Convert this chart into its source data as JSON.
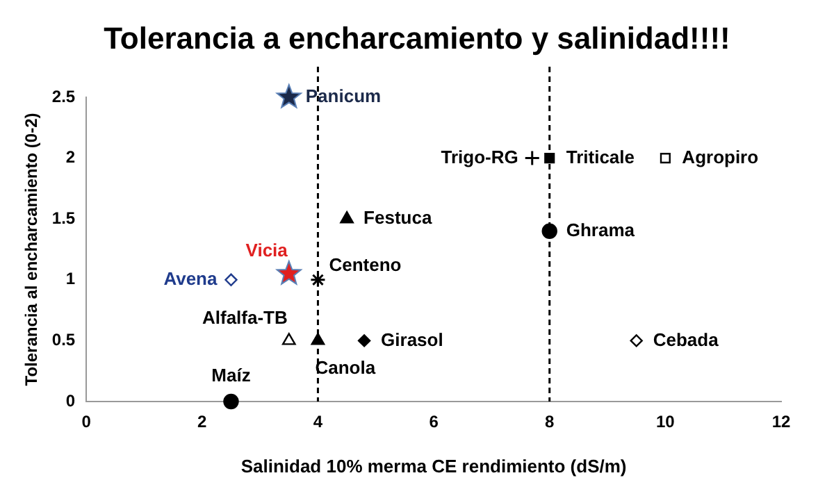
{
  "chart_data": {
    "type": "scatter",
    "title": "Tolerancia a encharcamiento y salinidad!!!!",
    "xlabel": "Salinidad 10% merma CE rendimiento (dS/m)",
    "ylabel": "Tolerancia al encharcamiento (0-2)",
    "xlim": [
      0,
      12
    ],
    "xticks": [
      0,
      2,
      4,
      6,
      8,
      10,
      12
    ],
    "ylim": [
      0,
      2.5
    ],
    "yticks": [
      0,
      0.5,
      1,
      1.5,
      2,
      2.5
    ],
    "grid": false,
    "legend": false,
    "ref_lines": [
      {
        "axis": "x",
        "value": 4,
        "line_style": "dashed",
        "color": "#000000"
      },
      {
        "axis": "x",
        "value": 8,
        "line_style": "dashed",
        "color": "#000000"
      }
    ],
    "series": [
      {
        "name": "Panicum",
        "color": "#1c2a4a",
        "marker": "star",
        "x": [
          3.5
        ],
        "values": [
          2.5
        ]
      },
      {
        "name": "Trigo-RG",
        "color": "#000000",
        "marker": "cross",
        "x": [
          7.7
        ],
        "values": [
          2
        ]
      },
      {
        "name": "Triticale",
        "color": "#000000",
        "marker": "square",
        "x": [
          8
        ],
        "values": [
          2
        ]
      },
      {
        "name": "Agropiro",
        "color": "#000000",
        "marker": "square",
        "x": [
          10
        ],
        "values": [
          2
        ]
      },
      {
        "name": "Festuca",
        "color": "#000000",
        "marker": "triangle",
        "x": [
          4.5
        ],
        "values": [
          1.5
        ]
      },
      {
        "name": "Ghrama",
        "color": "#000000",
        "marker": "circle",
        "x": [
          8
        ],
        "values": [
          1.4
        ]
      },
      {
        "name": "Vicia",
        "color": "#e02020",
        "marker": "star",
        "x": [
          3.5
        ],
        "values": [
          1.05
        ]
      },
      {
        "name": "Avena",
        "color": "#1f3b8c",
        "marker": "diamond",
        "x": [
          2.5
        ],
        "values": [
          1
        ]
      },
      {
        "name": "Centeno",
        "color": "#000000",
        "marker": "cross",
        "x": [
          4
        ],
        "values": [
          1
        ]
      },
      {
        "name": "Alfalfa-TB",
        "color": "#000000",
        "marker": "triangle",
        "x": [
          3.5
        ],
        "values": [
          0.5
        ]
      },
      {
        "name": "Canola",
        "color": "#000000",
        "marker": "triangle",
        "x": [
          4
        ],
        "values": [
          0.5
        ]
      },
      {
        "name": "Girasol",
        "color": "#000000",
        "marker": "diamond",
        "x": [
          4.8
        ],
        "values": [
          0.5
        ]
      },
      {
        "name": "Cebada",
        "color": "#000000",
        "marker": "diamond",
        "x": [
          9.5
        ],
        "values": [
          0.5
        ]
      },
      {
        "name": "Maíz",
        "color": "#000000",
        "marker": "circle",
        "x": [
          2.5
        ],
        "values": [
          0
        ]
      }
    ]
  }
}
